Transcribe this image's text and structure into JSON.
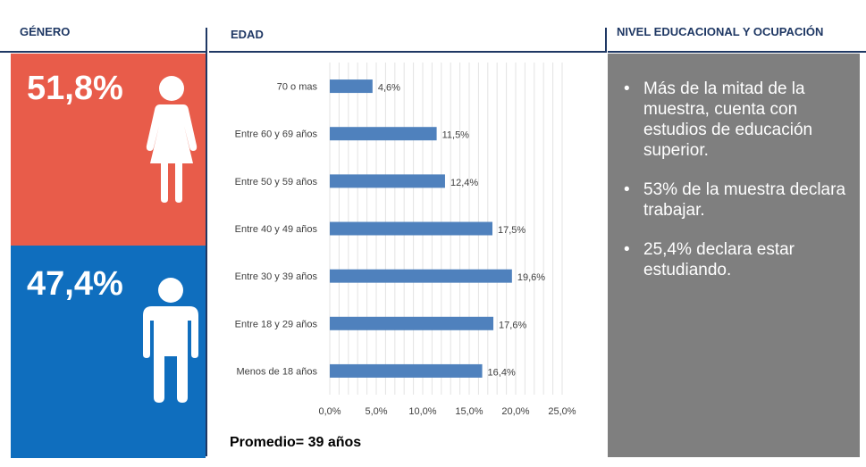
{
  "headers": {
    "genero": "GÉNERO",
    "edad": "EDAD",
    "nivel": "NIVEL EDUCACIONAL Y OCUPACIÓN"
  },
  "gender": {
    "female_pct": "51,8%",
    "male_pct": "47,4%",
    "female_color": "#e85c4a",
    "male_color": "#0f6ebe",
    "female_icon": "woman-icon",
    "male_icon": "man-icon"
  },
  "bullets": [
    "Más de la mitad de la muestra, cuenta con estudios de educación superior.",
    "53% de la muestra declara trabajar.",
    "25,4% declara estar estudiando."
  ],
  "bullet_symbol": "•",
  "average": "Promedio= 39 años",
  "chart_data": {
    "type": "bar",
    "orientation": "horizontal",
    "categories": [
      "70 o mas",
      "Entre 60 y 69 años",
      "Entre 50 y 59 años",
      "Entre 40 y 49 años",
      "Entre 30 y 39 años",
      "Entre 18 y 29 años",
      "Menos de 18 años"
    ],
    "values": [
      4.6,
      11.5,
      12.4,
      17.5,
      19.6,
      17.6,
      16.4
    ],
    "value_labels": [
      "4,6%",
      "11,5%",
      "12,4%",
      "17,5%",
      "19,6%",
      "17,6%",
      "16,4%"
    ],
    "xticks": [
      0,
      5,
      10,
      15,
      20,
      25
    ],
    "xtick_labels": [
      "0,0%",
      "5,0%",
      "10,0%",
      "15,0%",
      "20,0%",
      "25,0%"
    ],
    "xlim": [
      0,
      25
    ],
    "grid": true,
    "bar_color": "#4f81bd",
    "title": "",
    "xlabel": "",
    "ylabel": ""
  }
}
